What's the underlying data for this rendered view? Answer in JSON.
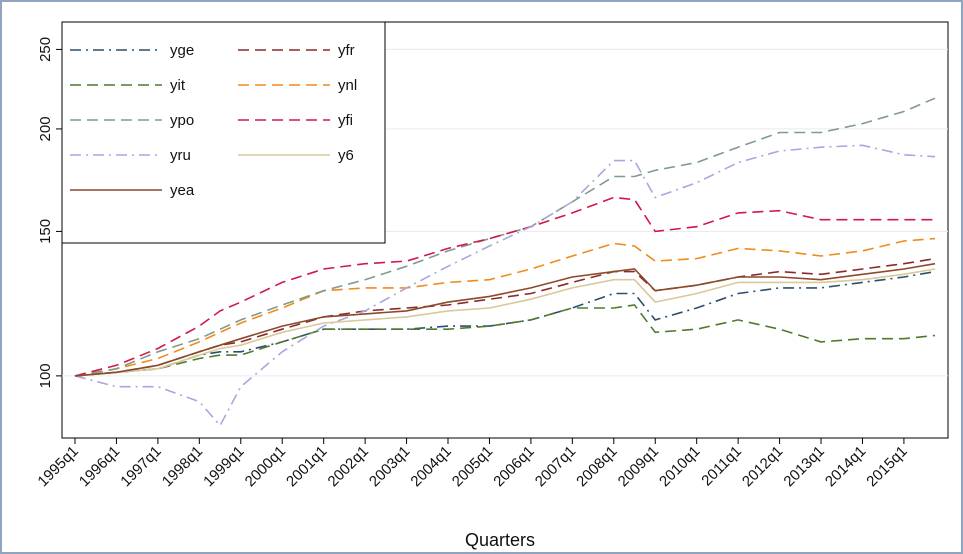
{
  "chart_data": {
    "type": "line",
    "x_label": "Quarters",
    "log_scale": true,
    "grid": true,
    "legend_position": "top-left",
    "x": [
      "1995q1",
      "1996q1",
      "1997q1",
      "1998q1",
      "1998q3",
      "1999q1",
      "2000q1",
      "2001q1",
      "2002q1",
      "2003q1",
      "2004q1",
      "2005q1",
      "2006q1",
      "2007q1",
      "2008q1",
      "2008q3",
      "2009q1",
      "2010q1",
      "2011q1",
      "2012q1",
      "2013q1",
      "2014q1",
      "2015q1",
      "2015q4"
    ],
    "xticks": [
      "1995q1",
      "1996q1",
      "1997q1",
      "1998q1",
      "1999q1",
      "2000q1",
      "2001q1",
      "2002q1",
      "2003q1",
      "2004q1",
      "2005q1",
      "2006q1",
      "2007q1",
      "2008q1",
      "2009q1",
      "2010q1",
      "2011q1",
      "2012q1",
      "2013q1",
      "2014q1",
      "2015q1"
    ],
    "ylim": [
      84,
      270
    ],
    "yticks": [
      100,
      150,
      200,
      250
    ],
    "series": [
      {
        "name": "yge",
        "color": "#2c4f6e",
        "style": "dashdot",
        "values": [
          100,
          101,
          102,
          106,
          107,
          107,
          110,
          114,
          114,
          114,
          115,
          115,
          117,
          121,
          126,
          126,
          117,
          121,
          126,
          128,
          128,
          130,
          132,
          134
        ]
      },
      {
        "name": "yfr",
        "color": "#8c2a2a",
        "style": "dash",
        "values": [
          100,
          101,
          103,
          107,
          109,
          110,
          114,
          118,
          120,
          121,
          122,
          124,
          126,
          130,
          134,
          134,
          127,
          129,
          132,
          134,
          133,
          135,
          137,
          139
        ]
      },
      {
        "name": "yit",
        "color": "#4f7a2e",
        "style": "dash",
        "values": [
          100,
          101,
          102,
          105,
          106,
          106,
          110,
          114,
          114,
          114,
          114,
          115,
          117,
          121,
          121,
          122,
          113,
          114,
          117,
          114,
          110,
          111,
          111,
          112
        ]
      },
      {
        "name": "ynl",
        "color": "#f08c1c",
        "style": "dash",
        "values": [
          100,
          102,
          105,
          110,
          113,
          116,
          121,
          127,
          128,
          128,
          130,
          131,
          135,
          140,
          145,
          144,
          138,
          139,
          143,
          142,
          140,
          142,
          146,
          147
        ]
      },
      {
        "name": "ypo",
        "color": "#7e9c8c",
        "style": "dash",
        "values": [
          100,
          102,
          107,
          111,
          114,
          117,
          122,
          127,
          131,
          136,
          142,
          147,
          152,
          163,
          175,
          175,
          178,
          182,
          190,
          198,
          198,
          203,
          210,
          218
        ]
      },
      {
        "name": "yfi",
        "color": "#d0194a",
        "style": "dash",
        "values": [
          100,
          103,
          108,
          115,
          120,
          123,
          130,
          135,
          137,
          138,
          143,
          147,
          152,
          158,
          165,
          164,
          150,
          152,
          158,
          159,
          155,
          155,
          155,
          155
        ]
      },
      {
        "name": "yru",
        "color": "#a9a6e0",
        "style": "dashdot",
        "values": [
          100,
          97,
          97,
          93,
          87,
          97,
          107,
          115,
          120,
          128,
          136,
          144,
          152,
          163,
          183,
          183,
          165,
          172,
          182,
          188,
          190,
          191,
          186,
          185
        ]
      },
      {
        "name": "y6",
        "color": "#d8c89a",
        "style": "solid",
        "values": [
          100,
          101,
          102,
          106,
          108,
          109,
          113,
          116,
          117,
          118,
          120,
          121,
          124,
          128,
          131,
          131,
          123,
          126,
          130,
          130,
          130,
          131,
          133,
          135
        ]
      },
      {
        "name": "yea",
        "color": "#8b4a2b",
        "style": "solid",
        "values": [
          100,
          101,
          103,
          107,
          109,
          111,
          115,
          118,
          119,
          120,
          123,
          125,
          128,
          132,
          134,
          135,
          127,
          129,
          132,
          132,
          131,
          133,
          135,
          137
        ]
      }
    ]
  }
}
